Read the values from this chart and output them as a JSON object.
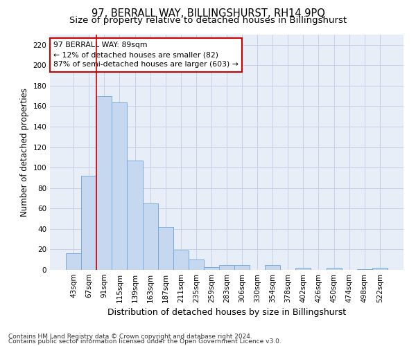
{
  "title": "97, BERRALL WAY, BILLINGSHURST, RH14 9PQ",
  "subtitle": "Size of property relative to detached houses in Billingshurst",
  "xlabel": "Distribution of detached houses by size in Billingshurst",
  "ylabel": "Number of detached properties",
  "footnote1": "Contains HM Land Registry data © Crown copyright and database right 2024.",
  "footnote2": "Contains public sector information licensed under the Open Government Licence v3.0.",
  "bar_labels": [
    "43sqm",
    "67sqm",
    "91sqm",
    "115sqm",
    "139sqm",
    "163sqm",
    "187sqm",
    "211sqm",
    "235sqm",
    "259sqm",
    "283sqm",
    "306sqm",
    "330sqm",
    "354sqm",
    "378sqm",
    "402sqm",
    "426sqm",
    "450sqm",
    "474sqm",
    "498sqm",
    "522sqm"
  ],
  "bar_values": [
    16,
    92,
    170,
    164,
    107,
    65,
    42,
    19,
    10,
    3,
    5,
    5,
    0,
    5,
    0,
    2,
    0,
    2,
    0,
    1,
    2
  ],
  "bar_color": "#c5d8f0",
  "bar_edge_color": "#7aabde",
  "vline_x": 2.0,
  "vline_color": "#cc0000",
  "annotation_line1": "97 BERRALL WAY: 89sqm",
  "annotation_line2": "← 12% of detached houses are smaller (82)",
  "annotation_line3": "87% of semi-detached houses are larger (603) →",
  "annotation_box_color": "#cc0000",
  "ylim": [
    0,
    230
  ],
  "yticks": [
    0,
    20,
    40,
    60,
    80,
    100,
    120,
    140,
    160,
    180,
    200,
    220
  ],
  "grid_color": "#c5d0e8",
  "background_color": "#e8eef8",
  "title_fontsize": 10.5,
  "subtitle_fontsize": 9.5,
  "xlabel_fontsize": 9,
  "ylabel_fontsize": 8.5,
  "tick_fontsize": 7.5,
  "footnote_fontsize": 6.5
}
